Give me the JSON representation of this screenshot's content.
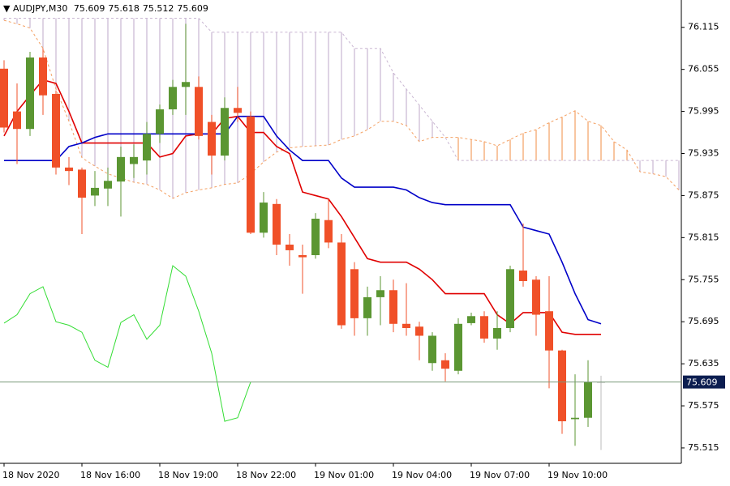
{
  "chart_data": {
    "type": "candlestick",
    "symbol": "AUDJPY,M30",
    "ylim": [
      75.493,
      76.154
    ],
    "yticks": [
      76.115,
      76.055,
      75.995,
      75.935,
      75.875,
      75.815,
      75.755,
      75.695,
      75.635,
      75.575,
      75.515
    ],
    "xticks": [
      {
        "value": 0,
        "label": "18 Nov 2020"
      },
      {
        "value": 6,
        "label": "18 Nov 16:00"
      },
      {
        "value": 12,
        "label": "18 Nov 19:00"
      },
      {
        "value": 18,
        "label": "18 Nov 22:00"
      },
      {
        "value": 24,
        "label": "19 Nov 01:00"
      },
      {
        "value": 30,
        "label": "19 Nov 04:00"
      },
      {
        "value": 36,
        "label": "19 Nov 07:00"
      },
      {
        "value": 42,
        "label": "19 Nov 10:00"
      }
    ],
    "up_color": "#5b9632",
    "down_color": "#f05028",
    "open": [
      76.056,
      75.995,
      75.97,
      76.072,
      76.02,
      75.915,
      75.912,
      75.875,
      75.885,
      75.895,
      75.92,
      75.925,
      75.963,
      75.998,
      76.03,
      76.03,
      75.98,
      75.932,
      76.0,
      75.988,
      75.822,
      75.863,
      75.805,
      75.79,
      75.79,
      75.84,
      75.808,
      75.77,
      75.7,
      75.73,
      75.74,
      75.692,
      75.688,
      75.636,
      75.64,
      75.625,
      75.693,
      75.703,
      75.671,
      75.686,
      75.768,
      75.755,
      75.71,
      75.654,
      75.556,
      75.558,
      75.609
    ],
    "high": [
      76.068,
      76.035,
      76.08,
      76.085,
      76.025,
      75.93,
      75.915,
      75.91,
      75.915,
      75.945,
      75.948,
      75.98,
      76.005,
      76.04,
      76.12,
      76.045,
      75.99,
      76.015,
      76.03,
      75.995,
      75.88,
      75.87,
      75.82,
      75.805,
      75.85,
      75.87,
      75.82,
      75.78,
      75.745,
      75.76,
      75.755,
      75.75,
      75.695,
      75.68,
      75.65,
      75.7,
      75.708,
      75.71,
      75.71,
      75.775,
      75.835,
      75.76,
      75.76,
      75.655,
      75.62,
      75.64,
      75.618
    ],
    "low": [
      75.965,
      75.92,
      75.96,
      75.99,
      75.905,
      75.89,
      75.82,
      75.86,
      75.86,
      75.845,
      75.9,
      75.905,
      75.95,
      75.99,
      75.99,
      75.955,
      75.905,
      75.925,
      75.98,
      75.82,
      75.815,
      75.79,
      75.775,
      75.735,
      75.785,
      75.8,
      75.685,
      75.675,
      75.675,
      75.69,
      75.68,
      75.675,
      75.64,
      75.625,
      75.61,
      75.62,
      75.69,
      75.665,
      75.655,
      75.68,
      75.745,
      75.675,
      75.6,
      75.535,
      75.518,
      75.545,
      75.512
    ],
    "close": [
      75.972,
      75.97,
      76.072,
      76.018,
      75.915,
      75.91,
      75.872,
      75.886,
      75.896,
      75.93,
      75.93,
      75.963,
      75.998,
      76.03,
      76.037,
      75.96,
      75.932,
      76.0,
      75.993,
      75.822,
      75.865,
      75.805,
      75.797,
      75.787,
      75.842,
      75.808,
      75.69,
      75.7,
      75.73,
      75.74,
      75.692,
      75.686,
      75.675,
      75.675,
      75.628,
      75.692,
      75.703,
      75.671,
      75.686,
      75.77,
      75.753,
      75.705,
      75.654,
      75.553,
      75.558,
      75.609,
      75.609
    ],
    "lines": [
      {
        "color": "#e00000",
        "values": [
          75.96,
          75.995,
          76.018,
          76.04,
          76.035,
          75.995,
          75.95,
          75.95,
          75.95,
          75.95,
          75.95,
          75.95,
          75.93,
          75.935,
          75.96,
          75.963,
          75.963,
          75.985,
          75.988,
          75.965,
          75.965,
          75.945,
          75.935,
          75.88,
          75.875,
          75.87,
          75.845,
          75.815,
          75.785,
          75.78,
          75.78,
          75.78,
          75.77,
          75.755,
          75.735,
          75.735,
          75.735,
          75.735,
          75.705,
          75.692,
          75.708,
          75.708,
          75.708,
          75.68,
          75.677,
          75.677,
          75.677
        ]
      },
      {
        "color": "#0000c8",
        "values": [
          75.925,
          75.925,
          75.925,
          75.925,
          75.925,
          75.945,
          75.95,
          75.958,
          75.963,
          75.963,
          75.963,
          75.963,
          75.963,
          75.963,
          75.963,
          75.963,
          75.963,
          75.963,
          75.988,
          75.988,
          75.988,
          75.96,
          75.94,
          75.925,
          75.925,
          75.925,
          75.9,
          75.887,
          75.887,
          75.887,
          75.887,
          75.883,
          75.872,
          75.865,
          75.862,
          75.862,
          75.862,
          75.862,
          75.862,
          75.862,
          75.83,
          75.825,
          75.82,
          75.78,
          75.735,
          75.698,
          75.692
        ]
      },
      {
        "color": "#33dd33",
        "values": [
          75.693,
          75.705,
          75.735,
          75.745,
          75.695,
          75.69,
          75.68,
          75.64,
          75.63,
          75.694,
          75.705,
          75.67,
          75.69,
          75.775,
          75.76,
          75.71,
          75.65,
          75.553,
          75.558,
          75.609,
          null,
          null,
          null,
          null,
          null,
          null,
          null,
          null,
          null,
          null,
          null,
          null,
          null,
          null,
          null,
          null,
          null,
          null,
          null,
          null,
          null,
          null,
          null,
          null,
          null,
          null,
          null
        ]
      }
    ],
    "cloud": {
      "up_color": "#f4a062",
      "down_color": "#c9b6d2",
      "a": [
        76.125,
        76.12,
        76.114,
        76.085,
        76.027,
        75.981,
        75.929,
        75.917,
        75.906,
        75.9,
        75.894,
        75.891,
        75.883,
        75.871,
        75.879,
        75.883,
        75.886,
        75.891,
        75.893,
        75.906,
        75.923,
        75.937,
        75.943,
        75.945,
        75.946,
        75.947,
        75.955,
        75.96,
        75.969,
        75.981,
        75.981,
        75.975,
        75.952,
        75.958,
        75.958,
        75.958,
        75.955,
        75.952,
        75.946,
        75.955,
        75.964,
        75.969,
        75.979,
        75.987,
        75.996,
        75.981,
        75.975,
        75.952,
        75.94,
        75.909,
        75.906,
        75.902,
        75.883
      ],
      "b": [
        76.128,
        76.128,
        76.128,
        76.128,
        76.128,
        76.128,
        76.128,
        76.128,
        76.128,
        76.128,
        76.128,
        76.128,
        76.128,
        76.128,
        76.128,
        76.128,
        76.108,
        76.108,
        76.108,
        76.108,
        76.108,
        76.108,
        76.108,
        76.108,
        76.108,
        76.108,
        76.108,
        76.085,
        76.085,
        76.085,
        76.05,
        76.027,
        76.004,
        75.981,
        75.958,
        75.925,
        75.925,
        75.925,
        75.925,
        75.925,
        75.925,
        75.925,
        75.925,
        75.925,
        75.925,
        75.925,
        75.925,
        75.925,
        75.925,
        75.925,
        75.925,
        75.925,
        75.925
      ]
    }
  }
}
